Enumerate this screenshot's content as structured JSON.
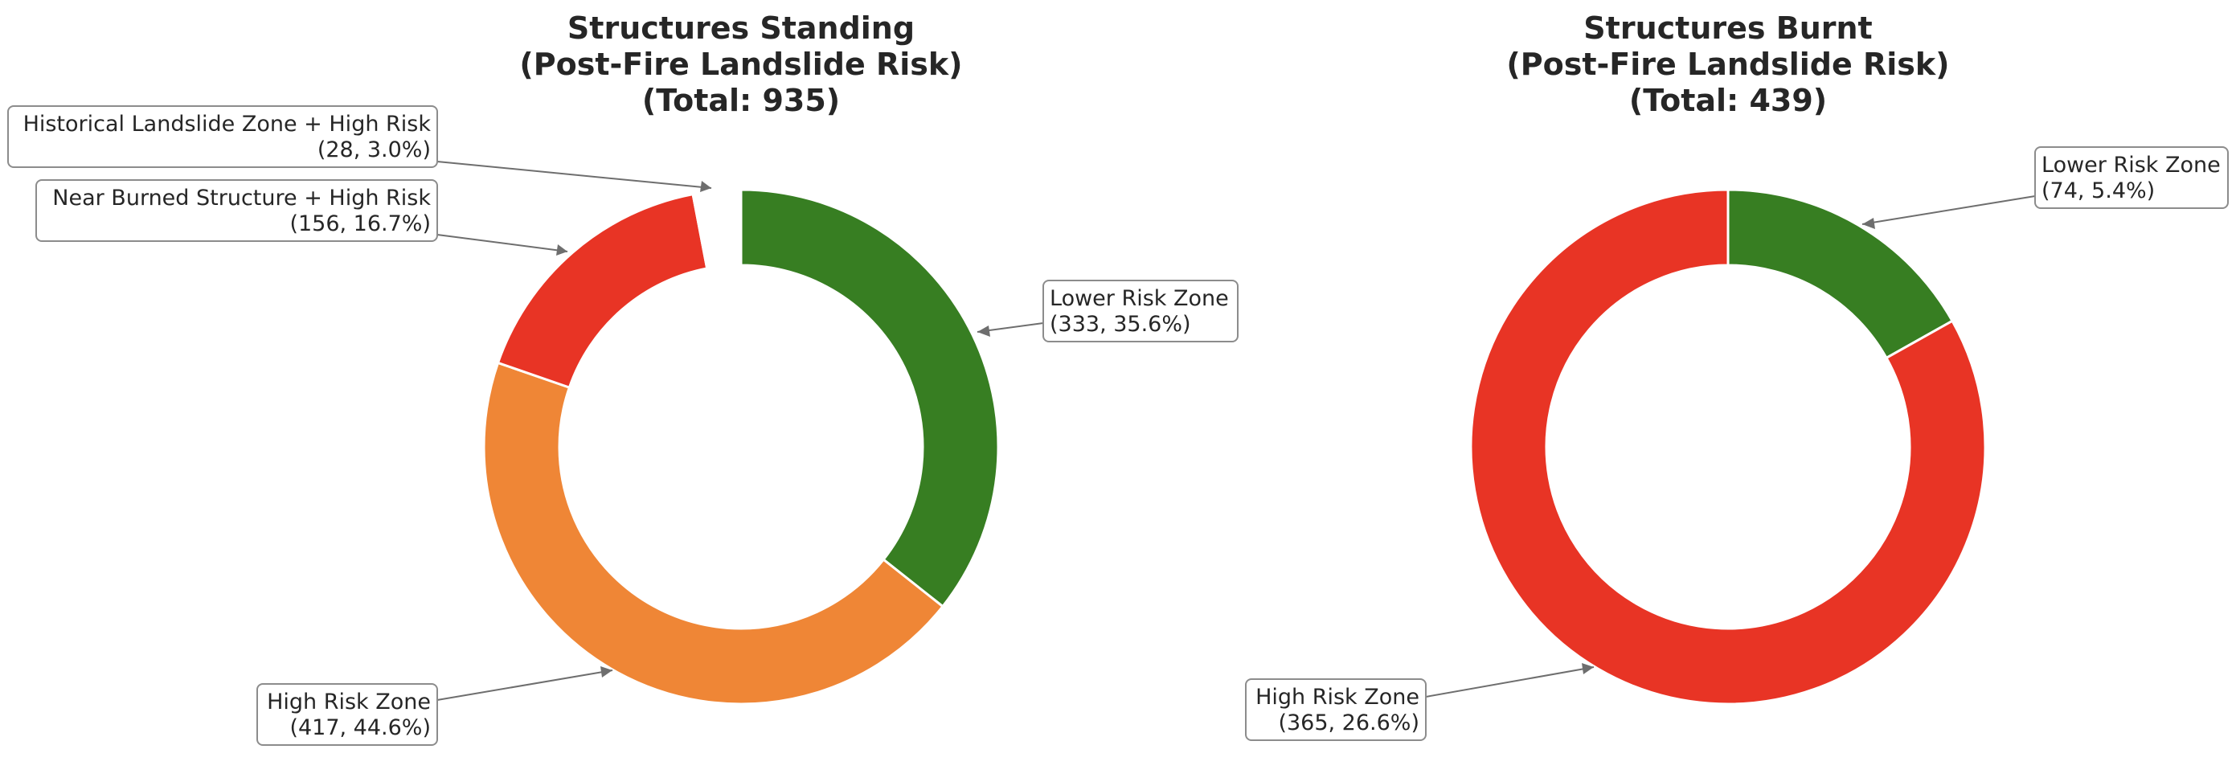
{
  "chart_data": [
    {
      "type": "pie",
      "variant": "donut",
      "title": [
        "Structures Standing",
        "(Post-Fire Landslide Risk)",
        "(Total: 935)"
      ],
      "slices": [
        {
          "label": "Lower Risk Zone",
          "value": 333,
          "annotation": "(333, 35.6%)",
          "color": "#377e22"
        },
        {
          "label": "High Risk Zone",
          "value": 417,
          "annotation": "(417, 44.6%)",
          "color": "#ef8636"
        },
        {
          "label": "Near Burned Structure + High Risk",
          "value": 156,
          "annotation": "(156, 16.7%)",
          "color": "#e83425"
        },
        {
          "label": "Historical Landslide Zone + High Risk",
          "value": 28,
          "annotation": "(28, 3.0%)",
          "color": "#ffffff"
        }
      ]
    },
    {
      "type": "pie",
      "variant": "donut",
      "title": [
        "Structures Burnt",
        "(Post-Fire Landslide Risk)",
        "(Total: 439)"
      ],
      "slices": [
        {
          "label": "Lower Risk Zone",
          "value": 74,
          "annotation": "(74, 5.4%)",
          "color": "#377e22"
        },
        {
          "label": "High Risk Zone",
          "value": 365,
          "annotation": "(365, 26.6%)",
          "color": "#e83425"
        }
      ]
    }
  ]
}
